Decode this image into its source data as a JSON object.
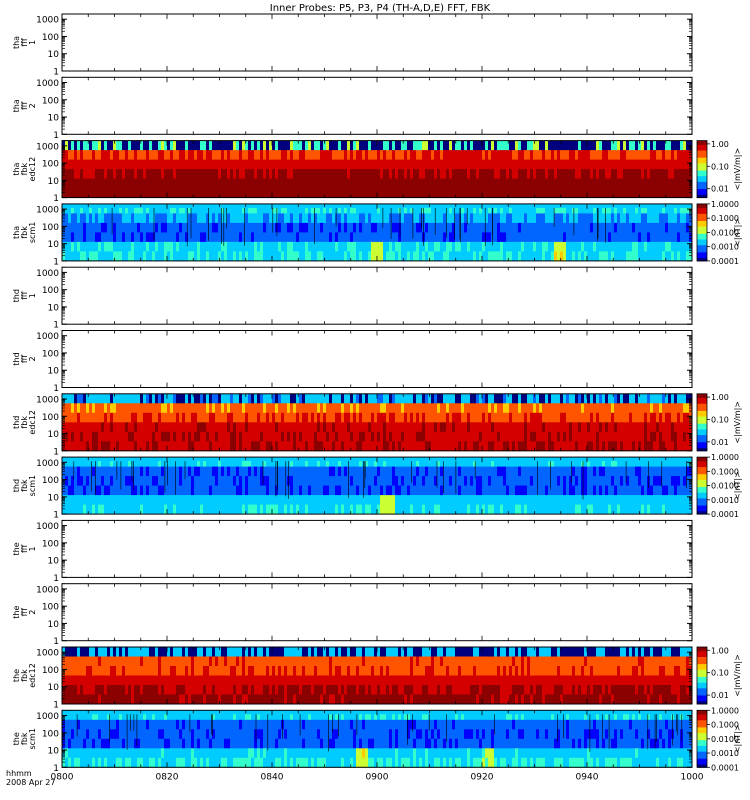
{
  "title": "Inner Probes: P5, P3, P4 (TH-A,D,E) FFT, FBK",
  "footer": {
    "line1": "hhmm",
    "line2": "2008 Apr 27"
  },
  "colors": {
    "spec_ramp": [
      "#00007f",
      "#0000ff",
      "#0066ff",
      "#00ccff",
      "#33ffcc",
      "#ccff33",
      "#ffcc00",
      "#ff5500",
      "#d40000",
      "#8b0000"
    ],
    "axis": "#000000",
    "background": "#ffffff"
  },
  "chart_data": {
    "type": "heatmap",
    "x_ticks": [
      "0800",
      "0820",
      "0840",
      "0900",
      "0920",
      "0940",
      "1000"
    ],
    "x_tick_values": [
      0,
      20,
      40,
      60,
      80,
      100,
      120
    ],
    "xlim": [
      0,
      120
    ],
    "x_unit_caption": "hhmm",
    "y_scale": "log",
    "ylim": [
      1,
      2000
    ],
    "y_ticks": [
      "1000",
      "100",
      "10",
      "1"
    ],
    "y_tick_values": [
      1000,
      100,
      10,
      1
    ],
    "panels": [
      {
        "label": [
          "tha",
          "fff",
          "1"
        ],
        "kind": "empty"
      },
      {
        "label": [
          "tha",
          "fff",
          "2"
        ],
        "kind": "empty"
      },
      {
        "label": [
          "tha",
          "fbk",
          "edc12"
        ],
        "kind": "edc",
        "colorbar": {
          "ticks": [
            "1.00",
            "0.10",
            "0.01"
          ],
          "tick_values": [
            1,
            0.1,
            0.01
          ],
          "range": [
            0.004,
            1.4
          ],
          "unit": "<|mV/m|>"
        },
        "band_levels": [
          4.3,
          7.5,
          8.0,
          8.7,
          9.0,
          9.0
        ],
        "top_dark_fraction": 0.55
      },
      {
        "label": [
          "tha",
          "fbk",
          "scm1"
        ],
        "kind": "scm",
        "colorbar": {
          "ticks": [
            "1.0000",
            "0.1000",
            "0.0100",
            "0.0010",
            "0.0001"
          ],
          "tick_values": [
            1,
            0.1,
            0.01,
            0.001,
            0.0001
          ],
          "range": [
            0.0001,
            1.0
          ],
          "unit": "<|nT|>"
        },
        "band_levels": [
          3.3,
          2.6,
          1.8,
          1.8,
          3.3,
          3.4
        ],
        "hot_spots": [
          {
            "t": 60,
            "level": 4.5
          },
          {
            "t": 95,
            "level": 4.8
          }
        ]
      },
      {
        "label": [
          "thd",
          "fff",
          "1"
        ],
        "kind": "empty"
      },
      {
        "label": [
          "thd",
          "fff",
          "2"
        ],
        "kind": "empty"
      },
      {
        "label": [
          "thd",
          "fbk",
          "edc12"
        ],
        "kind": "edc",
        "colorbar": {
          "ticks": [
            "1.00",
            "0.10",
            "0.01"
          ],
          "tick_values": [
            1,
            0.1,
            0.01
          ],
          "range": [
            0.004,
            1.4
          ],
          "unit": "<|mV/m|>"
        },
        "band_levels": [
          2.8,
          6.8,
          7.4,
          8.2,
          8.3,
          8.4
        ],
        "top_dark_fraction": 0.3
      },
      {
        "label": [
          "thd",
          "fbk",
          "scm1"
        ],
        "kind": "scm",
        "colorbar": {
          "ticks": [
            "1.0000",
            "0.1000",
            "0.0100",
            "0.0010",
            "0.0001"
          ],
          "tick_values": [
            1,
            0.1,
            0.01,
            0.001,
            0.0001
          ],
          "range": [
            0.0001,
            1.0
          ],
          "unit": "<|nT|>"
        },
        "band_levels": [
          3.2,
          1.8,
          1.7,
          1.7,
          3.0,
          3.3
        ],
        "hot_spots": [
          {
            "t": 62,
            "level": 4.5
          }
        ]
      },
      {
        "label": [
          "the",
          "fff",
          "1"
        ],
        "kind": "empty"
      },
      {
        "label": [
          "the",
          "fff",
          "2"
        ],
        "kind": "empty"
      },
      {
        "label": [
          "the",
          "fbk",
          "edc12"
        ],
        "kind": "edc",
        "colorbar": {
          "ticks": [
            "1.00",
            "0.10",
            "0.01"
          ],
          "tick_values": [
            1,
            0.1,
            0.01
          ],
          "range": [
            0.004,
            1.4
          ],
          "unit": "<|mV/m|>"
        },
        "band_levels": [
          3.0,
          7.2,
          7.3,
          8.0,
          8.6,
          8.8
        ],
        "top_dark_fraction": 0.5
      },
      {
        "label": [
          "the",
          "fbk",
          "scm1"
        ],
        "kind": "scm",
        "colorbar": {
          "ticks": [
            "1.0000",
            "0.1000",
            "0.0100",
            "0.0010",
            "0.0001"
          ],
          "tick_values": [
            1,
            0.1,
            0.01,
            0.001,
            0.0001
          ],
          "range": [
            0.0001,
            1.0
          ],
          "unit": "<|nT|>"
        },
        "band_levels": [
          3.3,
          1.8,
          1.7,
          1.7,
          3.1,
          3.5
        ],
        "hot_spots": [
          {
            "t": 57,
            "level": 4.6
          },
          {
            "t": 81,
            "level": 4.2
          }
        ]
      }
    ]
  }
}
